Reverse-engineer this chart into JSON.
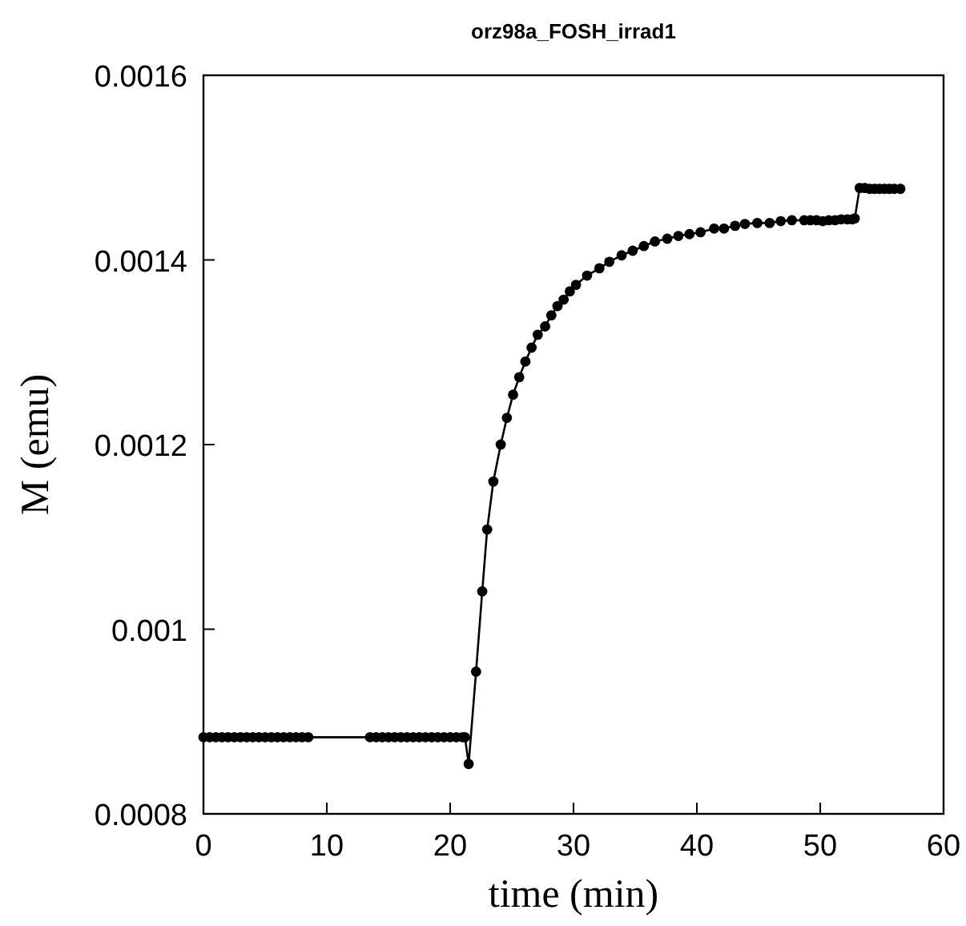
{
  "chart_data": {
    "type": "line",
    "title": "orz98a_FOSH_irrad1",
    "xlabel": "time (min)",
    "ylabel": "M (emu)",
    "xlim": [
      0,
      60
    ],
    "xticks": [
      0,
      10,
      20,
      30,
      40,
      50,
      60
    ],
    "ylim": [
      0.0008,
      0.0016
    ],
    "yticks": [
      0.0008,
      0.001,
      0.0012,
      0.0014,
      0.0016
    ],
    "grid": false,
    "marker": "circle",
    "line_style": "solid",
    "series": [
      {
        "color": "#000000",
        "x": [
          0,
          0.5,
          1,
          1.5,
          2,
          2.5,
          3,
          3.5,
          4,
          4.5,
          5,
          5.5,
          6,
          6.5,
          7,
          7.5,
          8,
          8.5,
          13.5,
          14,
          14.5,
          15,
          15.5,
          16,
          16.5,
          17,
          17.5,
          18,
          18.5,
          19,
          19.5,
          20,
          20.5,
          21,
          21.2,
          21.5,
          22.1,
          22.6,
          23,
          23.5,
          24.1,
          24.6,
          25.1,
          25.6,
          26.1,
          26.6,
          27.1,
          27.7,
          28.2,
          28.7,
          29.2,
          29.7,
          30.2,
          31.1,
          32.1,
          32.9,
          33.9,
          34.8,
          35.7,
          36.6,
          37.6,
          38.5,
          39.4,
          40.3,
          41.4,
          42.2,
          43.1,
          43.9,
          44.9,
          45.9,
          46.8,
          47.7,
          48.7,
          49.2,
          49.7,
          50.2,
          50.7,
          51.2,
          51.7,
          52.2,
          52.6,
          52.8,
          53.2,
          53.6,
          54,
          54.4,
          54.8,
          55.2,
          55.6,
          56,
          56.5
        ],
        "values": [
          0.000883,
          0.000883,
          0.000883,
          0.000883,
          0.000883,
          0.000883,
          0.000883,
          0.000883,
          0.000883,
          0.000883,
          0.000883,
          0.000883,
          0.000883,
          0.000883,
          0.000883,
          0.000883,
          0.000883,
          0.000883,
          0.000883,
          0.000883,
          0.000883,
          0.000883,
          0.000883,
          0.000883,
          0.000883,
          0.000883,
          0.000883,
          0.000883,
          0.000883,
          0.000883,
          0.000883,
          0.000883,
          0.000883,
          0.000883,
          0.000883,
          0.000854,
          0.000954,
          0.001041,
          0.001108,
          0.00116,
          0.0012,
          0.001229,
          0.001254,
          0.001273,
          0.00129,
          0.001305,
          0.001319,
          0.001328,
          0.00134,
          0.00135,
          0.001357,
          0.001366,
          0.001373,
          0.001383,
          0.001391,
          0.001398,
          0.001405,
          0.00141,
          0.001415,
          0.00142,
          0.001423,
          0.001426,
          0.001428,
          0.00143,
          0.001434,
          0.001434,
          0.001437,
          0.001439,
          0.00144,
          0.00144,
          0.001442,
          0.001443,
          0.001443,
          0.001443,
          0.001443,
          0.001442,
          0.001443,
          0.001443,
          0.001444,
          0.001444,
          0.001444,
          0.001445,
          0.001478,
          0.001478,
          0.001477,
          0.001477,
          0.001477,
          0.001477,
          0.001477,
          0.001477,
          0.001477
        ]
      }
    ]
  }
}
